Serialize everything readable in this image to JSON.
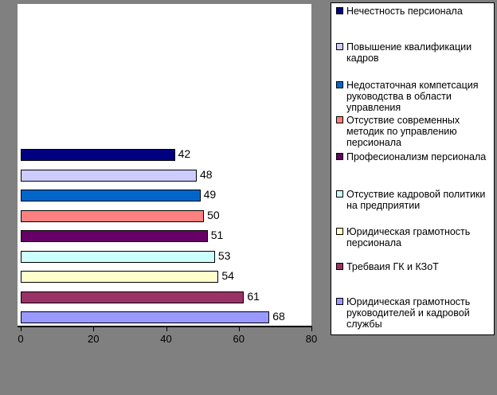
{
  "colors": {
    "background": "#808080",
    "plot_background": "#FFFFFF",
    "axis": "#000000"
  },
  "chart_data": {
    "type": "bar",
    "orientation": "horizontal",
    "title": "",
    "xlabel": "",
    "ylabel": "",
    "xlim": [
      0,
      80
    ],
    "x_ticks": [
      0,
      20,
      40,
      60,
      80
    ],
    "grid": false,
    "data_labels": true,
    "legend_position": "right",
    "series": [
      {
        "name": "Нечестность персионала",
        "value": 42,
        "color": "#000080"
      },
      {
        "name": "Повышение квалификации кадров",
        "value": 48,
        "color": "#CCCCFF"
      },
      {
        "name": "Недостаточная компетсация руководства в области управления",
        "value": 49,
        "color": "#0066CC"
      },
      {
        "name": "Отсуствие современных методик по управлению персионала",
        "value": 50,
        "color": "#FF8080"
      },
      {
        "name": "Професионализм персионала",
        "value": 51,
        "color": "#660066"
      },
      {
        "name": "Отсуствие кадровой политики на предприятии",
        "value": 53,
        "color": "#CCFFFF"
      },
      {
        "name": "Юридическая грамотность персионала",
        "value": 54,
        "color": "#FFFFCC"
      },
      {
        "name": "Требваия ГК и КЗоТ",
        "value": 61,
        "color": "#993366"
      },
      {
        "name": "Юридическая грамотность руководителей и кадровой службы",
        "value": 68,
        "color": "#9999FF"
      }
    ]
  },
  "legend": {
    "items": [
      {
        "label": "Нечестность персионала",
        "color": "#000080"
      },
      {
        "label": "Повышение квалификации\nкадров",
        "color": "#CCCCFF"
      },
      {
        "label": "Недостаточная компетсация\nруководства в области\nуправления",
        "color": "#0066CC"
      },
      {
        "label": "Отсуствие современных\nметодик по управлению\nперсионала",
        "color": "#FF8080"
      },
      {
        "label": "Професионализм персионала",
        "color": "#660066"
      },
      {
        "label": "Отсуствие кадровой политики\nна предприятии",
        "color": "#CCFFFF"
      },
      {
        "label": "Юридическая грамотность\nперсионала",
        "color": "#FFFFCC"
      },
      {
        "label": "Требваия ГК и КЗоТ",
        "color": "#993366"
      },
      {
        "label": "Юридическая грамотность\nруководителей и кадровой\nслужбы",
        "color": "#9999FF"
      }
    ]
  }
}
